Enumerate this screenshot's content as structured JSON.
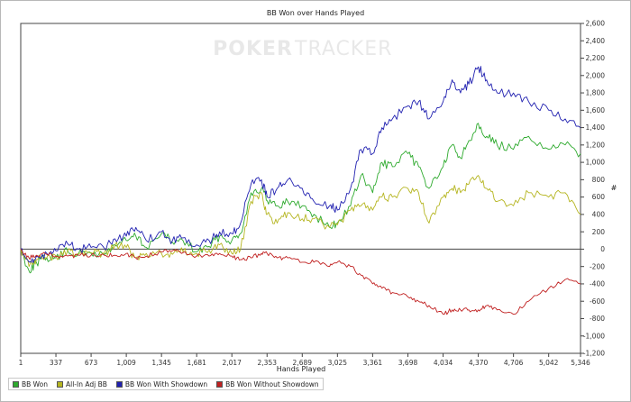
{
  "watermark": {
    "poker": "POKER",
    "tracker": "TRACKER"
  },
  "chart_data": {
    "type": "line",
    "title": "BB Won over Hands Played",
    "xlabel": "Hands Played",
    "ylabel": "#",
    "xlim": [
      1,
      5346
    ],
    "ylim": [
      -1200,
      2600
    ],
    "x_ticks": [
      1,
      337,
      673,
      1009,
      1345,
      1681,
      2017,
      2353,
      2689,
      3025,
      3361,
      3698,
      4034,
      4370,
      4706,
      5042,
      5346
    ],
    "x_tick_labels": [
      "1",
      "337",
      "673",
      "1,009",
      "1,345",
      "1,681",
      "2,017",
      "2,353",
      "2,689",
      "3,025",
      "3,361",
      "3,698",
      "4,034",
      "4,370",
      "4,706",
      "5,042",
      "5,346"
    ],
    "y_ticks": [
      -1200,
      -1000,
      -800,
      -600,
      -400,
      -200,
      0,
      200,
      400,
      600,
      800,
      1000,
      1200,
      1400,
      1600,
      1800,
      2000,
      2200,
      2400,
      2600
    ],
    "y_tick_labels": [
      "-1,200",
      "-1,000",
      "-800",
      "-600",
      "-400",
      "-200",
      "0",
      "200",
      "400",
      "600",
      "800",
      "1,000",
      "1,200",
      "1,400",
      "1,600",
      "1,800",
      "2,000",
      "2,200",
      "2,400",
      "2,600"
    ],
    "grid": false,
    "legend_position": "bottom-left",
    "series": [
      {
        "name": "BB Won",
        "color": "#2eaa2e",
        "x": [
          1,
          80,
          150,
          250,
          337,
          450,
          550,
          673,
          800,
          900,
          1009,
          1100,
          1200,
          1345,
          1450,
          1550,
          1681,
          1800,
          1900,
          2017,
          2100,
          2200,
          2300,
          2353,
          2450,
          2550,
          2689,
          2800,
          2950,
          3025,
          3150,
          3250,
          3361,
          3450,
          3550,
          3698,
          3800,
          3900,
          4034,
          4120,
          4200,
          4280,
          4370,
          4450,
          4550,
          4706,
          4850,
          5042,
          5200,
          5346
        ],
        "y": [
          0,
          -250,
          -150,
          -100,
          -100,
          -20,
          -60,
          -50,
          -60,
          50,
          100,
          150,
          20,
          180,
          80,
          100,
          -30,
          30,
          150,
          100,
          180,
          650,
          700,
          560,
          500,
          550,
          500,
          400,
          250,
          300,
          500,
          850,
          650,
          1000,
          950,
          1100,
          950,
          700,
          950,
          1200,
          1050,
          1250,
          1450,
          1300,
          1200,
          1150,
          1300,
          1150,
          1200,
          1100
        ]
      },
      {
        "name": "All-In Adj BB",
        "color": "#b5b520",
        "x": [
          1,
          80,
          150,
          250,
          337,
          450,
          550,
          673,
          800,
          900,
          1009,
          1100,
          1200,
          1345,
          1450,
          1550,
          1681,
          1800,
          1900,
          2017,
          2100,
          2200,
          2300,
          2353,
          2450,
          2550,
          2689,
          2800,
          2950,
          3025,
          3150,
          3250,
          3361,
          3450,
          3550,
          3698,
          3800,
          3900,
          4034,
          4120,
          4200,
          4280,
          4370,
          4450,
          4550,
          4706,
          4850,
          5042,
          5200,
          5346
        ],
        "y": [
          0,
          -200,
          -120,
          -100,
          -80,
          -10,
          -50,
          -40,
          -50,
          40,
          20,
          -100,
          -50,
          -50,
          -60,
          -30,
          -50,
          -10,
          50,
          -50,
          0,
          550,
          650,
          400,
          300,
          420,
          350,
          350,
          250,
          280,
          450,
          500,
          450,
          600,
          600,
          700,
          650,
          300,
          600,
          700,
          650,
          750,
          850,
          700,
          550,
          500,
          650,
          600,
          650,
          400
        ]
      },
      {
        "name": "BB Won With Showdown",
        "color": "#2020b0",
        "x": [
          1,
          80,
          150,
          250,
          337,
          450,
          550,
          673,
          800,
          900,
          1009,
          1100,
          1200,
          1345,
          1450,
          1550,
          1681,
          1800,
          1900,
          2017,
          2100,
          2200,
          2300,
          2353,
          2450,
          2550,
          2689,
          2800,
          2950,
          3025,
          3150,
          3250,
          3361,
          3450,
          3550,
          3698,
          3800,
          3900,
          4034,
          4120,
          4200,
          4280,
          4370,
          4450,
          4550,
          4706,
          4850,
          5042,
          5200,
          5346
        ],
        "y": [
          0,
          -150,
          -80,
          -50,
          -20,
          60,
          0,
          20,
          10,
          120,
          150,
          250,
          100,
          200,
          100,
          130,
          50,
          100,
          200,
          180,
          300,
          750,
          800,
          600,
          700,
          800,
          700,
          550,
          500,
          450,
          700,
          1150,
          1100,
          1400,
          1500,
          1650,
          1700,
          1500,
          1700,
          1950,
          1800,
          1900,
          2100,
          1950,
          1800,
          1800,
          1700,
          1600,
          1500,
          1400
        ]
      },
      {
        "name": "BB Won Without Showdown",
        "color": "#c02020",
        "x": [
          1,
          80,
          150,
          250,
          337,
          450,
          550,
          673,
          800,
          900,
          1009,
          1100,
          1200,
          1345,
          1450,
          1550,
          1681,
          1800,
          1900,
          2017,
          2100,
          2200,
          2300,
          2353,
          2450,
          2550,
          2689,
          2800,
          2950,
          3025,
          3150,
          3250,
          3361,
          3450,
          3550,
          3698,
          3800,
          3900,
          4034,
          4120,
          4200,
          4280,
          4370,
          4450,
          4550,
          4706,
          4850,
          5042,
          5200,
          5346
        ],
        "y": [
          0,
          -100,
          -70,
          -60,
          -80,
          -80,
          -70,
          -70,
          -70,
          -70,
          -50,
          -100,
          -80,
          -30,
          -20,
          -40,
          -80,
          -80,
          -50,
          -80,
          -120,
          -100,
          -50,
          -50,
          -100,
          -100,
          -150,
          -150,
          -200,
          -150,
          -200,
          -300,
          -400,
          -450,
          -500,
          -550,
          -600,
          -650,
          -750,
          -700,
          -700,
          -700,
          -700,
          -650,
          -700,
          -750,
          -600,
          -450,
          -350,
          -400
        ]
      }
    ]
  }
}
